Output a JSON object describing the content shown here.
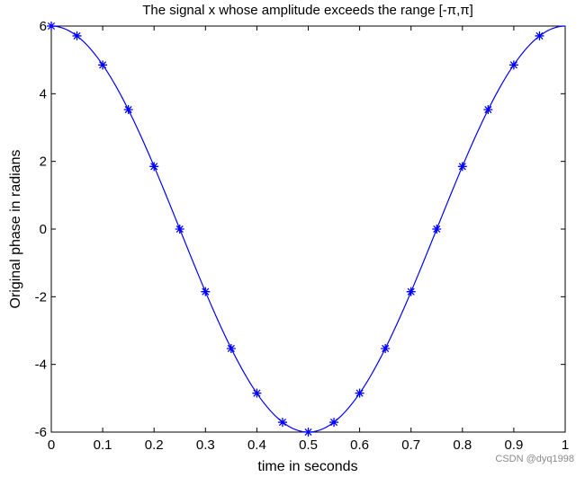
{
  "chart_data": {
    "type": "line",
    "title": "The signal x whose amplitude exceeds the range [-π,π]",
    "xlabel": "time in seconds",
    "ylabel": "Original phase in radians",
    "xlim": [
      0,
      1
    ],
    "ylim": [
      -6,
      6
    ],
    "xticks": [
      "0",
      "0.1",
      "0.2",
      "0.3",
      "0.4",
      "0.5",
      "0.6",
      "0.7",
      "0.8",
      "0.9",
      "1"
    ],
    "yticks": [
      "-6",
      "-4",
      "-2",
      "0",
      "2",
      "4",
      "6"
    ],
    "grid": false,
    "line_color": "#0000ff",
    "marker": "asterisk",
    "curve": {
      "function": "6*cos(2*pi*t)",
      "t_start": 0,
      "t_end": 1
    },
    "points": {
      "x": [
        0,
        0.05,
        0.1,
        0.15,
        0.2,
        0.25,
        0.3,
        0.35,
        0.4,
        0.45,
        0.5,
        0.55,
        0.6,
        0.65,
        0.7,
        0.75,
        0.8,
        0.85,
        0.9,
        0.95
      ],
      "y": [
        6,
        5.71,
        4.85,
        3.53,
        1.85,
        0,
        -1.85,
        -3.53,
        -4.85,
        -5.71,
        -6,
        -5.71,
        -4.85,
        -3.53,
        -1.85,
        0,
        1.85,
        3.53,
        4.85,
        5.71
      ]
    }
  },
  "watermark": "CSDN @dyq1998"
}
